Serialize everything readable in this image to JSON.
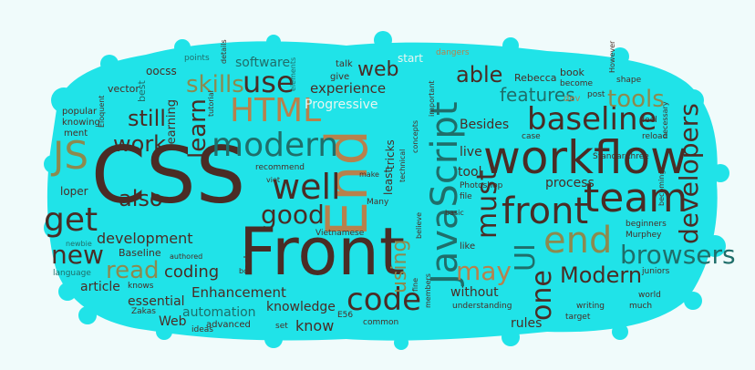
{
  "colors": {
    "background": "#f0fbfb",
    "blob": "#20e3e8",
    "dark": "#4a2c25",
    "olive": "#8c8a4f",
    "teal": "#1f6e6a",
    "orange": "#b7814c",
    "light": "#e9f6f1"
  },
  "words": [
    {
      "text": "CSS",
      "color": "dark"
    },
    {
      "text": "Front",
      "color": "dark"
    },
    {
      "text": "End",
      "color": "orange"
    },
    {
      "text": "workflow",
      "color": "dark"
    },
    {
      "text": "JavaScript",
      "color": "teal"
    },
    {
      "text": "front",
      "color": "dark"
    },
    {
      "text": "team",
      "color": "dark"
    },
    {
      "text": "end",
      "color": "olive"
    },
    {
      "text": "modern",
      "color": "teal"
    },
    {
      "text": "HTML",
      "color": "orange"
    },
    {
      "text": "baseline",
      "color": "dark"
    },
    {
      "text": "developers",
      "color": "dark"
    },
    {
      "text": "browsers",
      "color": "teal"
    },
    {
      "text": "well",
      "color": "dark"
    },
    {
      "text": "get",
      "color": "dark"
    },
    {
      "text": "JS",
      "color": "olive"
    },
    {
      "text": "code",
      "color": "dark"
    },
    {
      "text": "good",
      "color": "dark"
    },
    {
      "text": "use",
      "color": "dark"
    },
    {
      "text": "must",
      "color": "dark"
    },
    {
      "text": "may",
      "color": "orange"
    },
    {
      "text": "one",
      "color": "dark"
    },
    {
      "text": "UI",
      "color": "teal"
    },
    {
      "text": "Modern",
      "color": "dark"
    },
    {
      "text": "tools",
      "color": "olive"
    },
    {
      "text": "skills",
      "color": "olive"
    },
    {
      "text": "work",
      "color": "dark"
    },
    {
      "text": "also",
      "color": "dark"
    },
    {
      "text": "new",
      "color": "dark"
    },
    {
      "text": "learn",
      "color": "dark"
    },
    {
      "text": "web",
      "color": "dark"
    },
    {
      "text": "able",
      "color": "dark"
    },
    {
      "text": "still",
      "color": "dark"
    },
    {
      "text": "using",
      "color": "olive"
    },
    {
      "text": "features",
      "color": "teal"
    },
    {
      "text": "read",
      "color": "olive"
    },
    {
      "text": "development",
      "color": "dark"
    },
    {
      "text": "coding",
      "color": "dark"
    },
    {
      "text": "article",
      "color": "dark"
    },
    {
      "text": "Enhancement",
      "color": "dark"
    },
    {
      "text": "automation",
      "color": "teal"
    },
    {
      "text": "knowledge",
      "color": "dark"
    },
    {
      "text": "know",
      "color": "dark"
    },
    {
      "text": "experience",
      "color": "dark"
    },
    {
      "text": "Progressive",
      "color": "light"
    },
    {
      "text": "process",
      "color": "dark"
    },
    {
      "text": "essential",
      "color": "dark"
    },
    {
      "text": "software",
      "color": "teal"
    },
    {
      "text": "learning",
      "color": "dark"
    },
    {
      "text": "Besides",
      "color": "dark"
    },
    {
      "text": "without",
      "color": "dark"
    },
    {
      "text": "rules",
      "color": "dark"
    },
    {
      "text": "tool",
      "color": "dark"
    },
    {
      "text": "live",
      "color": "dark"
    },
    {
      "text": "Web",
      "color": "dark"
    },
    {
      "text": "oocss",
      "color": "dark"
    },
    {
      "text": "Rebecca",
      "color": "dark"
    },
    {
      "text": "book",
      "color": "dark"
    },
    {
      "text": "start",
      "color": "light"
    },
    {
      "text": "talk",
      "color": "dark"
    },
    {
      "text": "give",
      "color": "dark"
    },
    {
      "text": "points",
      "color": "teal"
    },
    {
      "text": "dangers",
      "color": "orange"
    },
    {
      "text": "vector",
      "color": "dark"
    },
    {
      "text": "popular",
      "color": "dark"
    },
    {
      "text": "knowing",
      "color": "dark"
    },
    {
      "text": "ment",
      "color": "dark"
    },
    {
      "text": "loper",
      "color": "dark"
    },
    {
      "text": "best",
      "color": "teal"
    },
    {
      "text": "Baseline",
      "color": "dark"
    },
    {
      "text": "language",
      "color": "teal"
    },
    {
      "text": "knows",
      "color": "dark"
    },
    {
      "text": "Zakas",
      "color": "dark"
    },
    {
      "text": "advanced",
      "color": "dark"
    },
    {
      "text": "ideas",
      "color": "dark"
    },
    {
      "text": "set",
      "color": "dark"
    },
    {
      "text": "E56",
      "color": "dark"
    },
    {
      "text": "common",
      "color": "dark"
    },
    {
      "text": "understanding",
      "color": "dark"
    },
    {
      "text": "members",
      "color": "dark"
    },
    {
      "text": "ask",
      "color": "dark"
    },
    {
      "text": "box",
      "color": "dark"
    },
    {
      "text": "Vietnamese",
      "color": "dark"
    },
    {
      "text": "recommend",
      "color": "dark"
    },
    {
      "text": "Many",
      "color": "dark"
    },
    {
      "text": "believe",
      "color": "dark"
    },
    {
      "text": "Photoshop",
      "color": "dark"
    },
    {
      "text": "file",
      "color": "dark"
    },
    {
      "text": "case",
      "color": "dark"
    },
    {
      "text": "dev",
      "color": "orange"
    },
    {
      "text": "post",
      "color": "dark"
    },
    {
      "text": "become",
      "color": "dark"
    },
    {
      "text": "shape",
      "color": "dark"
    },
    {
      "text": "feel",
      "color": "dark"
    },
    {
      "text": "reload",
      "color": "dark"
    },
    {
      "text": "Standard",
      "color": "dark"
    },
    {
      "text": "three",
      "color": "dark"
    },
    {
      "text": "becoming",
      "color": "dark"
    },
    {
      "text": "beginners",
      "color": "dark"
    },
    {
      "text": "Murphey",
      "color": "dark"
    },
    {
      "text": "juniors",
      "color": "dark"
    },
    {
      "text": "world",
      "color": "dark"
    },
    {
      "text": "much",
      "color": "dark"
    },
    {
      "text": "target",
      "color": "dark"
    },
    {
      "text": "writing",
      "color": "dark"
    },
    {
      "text": "like",
      "color": "dark"
    },
    {
      "text": "tutorial",
      "color": "dark"
    },
    {
      "text": "details",
      "color": "dark"
    },
    {
      "text": "elements",
      "color": "teal"
    },
    {
      "text": "However",
      "color": "dark"
    },
    {
      "text": "necessary",
      "color": "dark"
    },
    {
      "text": "tricks",
      "color": "dark"
    },
    {
      "text": "least",
      "color": "dark"
    },
    {
      "text": "make",
      "color": "dark"
    },
    {
      "text": "viet",
      "color": "dark"
    },
    {
      "text": "technical",
      "color": "dark"
    },
    {
      "text": "concepts",
      "color": "dark"
    },
    {
      "text": "Eloquent",
      "color": "dark"
    },
    {
      "text": "newbie",
      "color": "teal"
    },
    {
      "text": "authored",
      "color": "dark"
    },
    {
      "text": "basic",
      "color": "dark"
    },
    {
      "text": "fine",
      "color": "dark"
    },
    {
      "text": "important",
      "color": "dark"
    }
  ]
}
